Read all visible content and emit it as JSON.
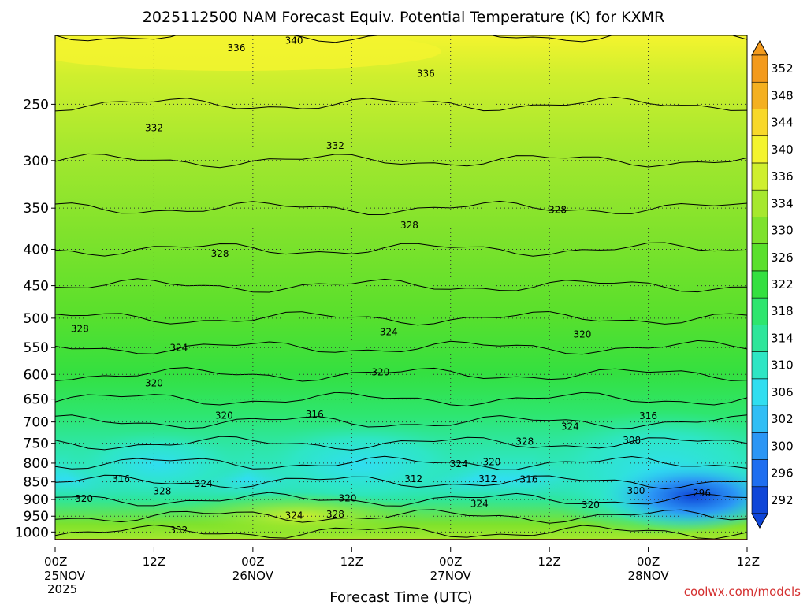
{
  "chart_data": {
    "type": "heatmap",
    "title": "2025112500 NAM Forecast Equiv. Potential Temperature (K) for KXMR",
    "xlabel": "Forecast Time (UTC)",
    "ylabel": "",
    "x_ticks": [
      {
        "hour": 0,
        "label": "00Z",
        "date": "25NOV",
        "year": "2025"
      },
      {
        "hour": 12,
        "label": "12Z",
        "date": "",
        "year": ""
      },
      {
        "hour": 24,
        "label": "00Z",
        "date": "26NOV",
        "year": ""
      },
      {
        "hour": 36,
        "label": "12Z",
        "date": "",
        "year": ""
      },
      {
        "hour": 48,
        "label": "00Z",
        "date": "27NOV",
        "year": ""
      },
      {
        "hour": 60,
        "label": "12Z",
        "date": "",
        "year": ""
      },
      {
        "hour": 72,
        "label": "00Z",
        "date": "28NOV",
        "year": ""
      },
      {
        "hour": 84,
        "label": "12Z",
        "date": "",
        "year": ""
      }
    ],
    "x_range_hours": [
      0,
      84
    ],
    "y_axis": {
      "label": "",
      "range_hPa": [
        1025,
        200
      ],
      "ticks": [
        250,
        300,
        350,
        400,
        450,
        500,
        550,
        600,
        650,
        700,
        750,
        800,
        850,
        900,
        950,
        1000
      ]
    },
    "colorbar": {
      "unit": "K",
      "levels": [
        292,
        296,
        300,
        302,
        306,
        310,
        314,
        318,
        322,
        326,
        330,
        334,
        336,
        340,
        344,
        348,
        352
      ],
      "colors": [
        "#0f46d8",
        "#1e6ef0",
        "#2b96f5",
        "#30bef5",
        "#30def0",
        "#2ee6c4",
        "#2ee69a",
        "#2ee66e",
        "#34e040",
        "#5ae02c",
        "#7ee22c",
        "#a6e82e",
        "#cfef2e",
        "#f4f42e",
        "#f8d82a",
        "#f4b020",
        "#f39a1c"
      ]
    },
    "profile_points": [
      {
        "pressure_hPa": 200,
        "theta_e_K": 340
      },
      {
        "pressure_hPa": 250,
        "theta_e_K": 334
      },
      {
        "pressure_hPa": 300,
        "theta_e_K": 331
      },
      {
        "pressure_hPa": 350,
        "theta_e_K": 330
      },
      {
        "pressure_hPa": 400,
        "theta_e_K": 328
      },
      {
        "pressure_hPa": 450,
        "theta_e_K": 326
      },
      {
        "pressure_hPa": 500,
        "theta_e_K": 325
      },
      {
        "pressure_hPa": 550,
        "theta_e_K": 323
      },
      {
        "pressure_hPa": 600,
        "theta_e_K": 320
      },
      {
        "pressure_hPa": 650,
        "theta_e_K": 319
      },
      {
        "pressure_hPa": 700,
        "theta_e_K": 316
      },
      {
        "pressure_hPa": 750,
        "theta_e_K": 312
      },
      {
        "pressure_hPa": 800,
        "theta_e_K": 312
      },
      {
        "pressure_hPa": 850,
        "theta_e_K": 314
      },
      {
        "pressure_hPa": 900,
        "theta_e_K": 319
      },
      {
        "pressure_hPa": 950,
        "theta_e_K": 324
      },
      {
        "pressure_hPa": 1000,
        "theta_e_K": 328
      }
    ],
    "contour_labels": [
      {
        "hour": 29,
        "pressure_hPa": 205,
        "text": "340"
      },
      {
        "hour": 22,
        "pressure_hPa": 210,
        "text": "336"
      },
      {
        "hour": 45,
        "pressure_hPa": 228,
        "text": "336"
      },
      {
        "hour": 12,
        "pressure_hPa": 272,
        "text": "332"
      },
      {
        "hour": 34,
        "pressure_hPa": 288,
        "text": "332"
      },
      {
        "hour": 43,
        "pressure_hPa": 373,
        "text": "328"
      },
      {
        "hour": 20,
        "pressure_hPa": 409,
        "text": "328"
      },
      {
        "hour": 61,
        "pressure_hPa": 355,
        "text": "328"
      },
      {
        "hour": 3,
        "pressure_hPa": 522,
        "text": "328"
      },
      {
        "hour": 15,
        "pressure_hPa": 555,
        "text": "324"
      },
      {
        "hour": 40.5,
        "pressure_hPa": 527,
        "text": "324"
      },
      {
        "hour": 64,
        "pressure_hPa": 531,
        "text": "320"
      },
      {
        "hour": 39.5,
        "pressure_hPa": 600,
        "text": "320"
      },
      {
        "hour": 12,
        "pressure_hPa": 622,
        "text": "320"
      },
      {
        "hour": 20.5,
        "pressure_hPa": 691,
        "text": "320"
      },
      {
        "hour": 31.5,
        "pressure_hPa": 688,
        "text": "316"
      },
      {
        "hour": 72,
        "pressure_hPa": 692,
        "text": "316"
      },
      {
        "hour": 62.5,
        "pressure_hPa": 716,
        "text": "324"
      },
      {
        "hour": 70,
        "pressure_hPa": 749,
        "text": "308"
      },
      {
        "hour": 57,
        "pressure_hPa": 752,
        "text": "328"
      },
      {
        "hour": 49,
        "pressure_hPa": 808,
        "text": "324"
      },
      {
        "hour": 53,
        "pressure_hPa": 803,
        "text": "320"
      },
      {
        "hour": 8,
        "pressure_hPa": 848,
        "text": "316"
      },
      {
        "hour": 18,
        "pressure_hPa": 862,
        "text": "324"
      },
      {
        "hour": 13,
        "pressure_hPa": 883,
        "text": "328"
      },
      {
        "hour": 3.5,
        "pressure_hPa": 905,
        "text": "320"
      },
      {
        "hour": 43.5,
        "pressure_hPa": 848,
        "text": "312"
      },
      {
        "hour": 52.5,
        "pressure_hPa": 848,
        "text": "312"
      },
      {
        "hour": 57.5,
        "pressure_hPa": 850,
        "text": "316"
      },
      {
        "hour": 35.5,
        "pressure_hPa": 903,
        "text": "320"
      },
      {
        "hour": 70.5,
        "pressure_hPa": 882,
        "text": "300"
      },
      {
        "hour": 78.5,
        "pressure_hPa": 888,
        "text": "296"
      },
      {
        "hour": 65,
        "pressure_hPa": 923,
        "text": "320"
      },
      {
        "hour": 51.5,
        "pressure_hPa": 920,
        "text": "324"
      },
      {
        "hour": 29,
        "pressure_hPa": 955,
        "text": "324"
      },
      {
        "hour": 34,
        "pressure_hPa": 952,
        "text": "328"
      },
      {
        "hour": 15,
        "pressure_hPa": 1002,
        "text": "332"
      }
    ]
  },
  "credit": "coolwx.com/models"
}
